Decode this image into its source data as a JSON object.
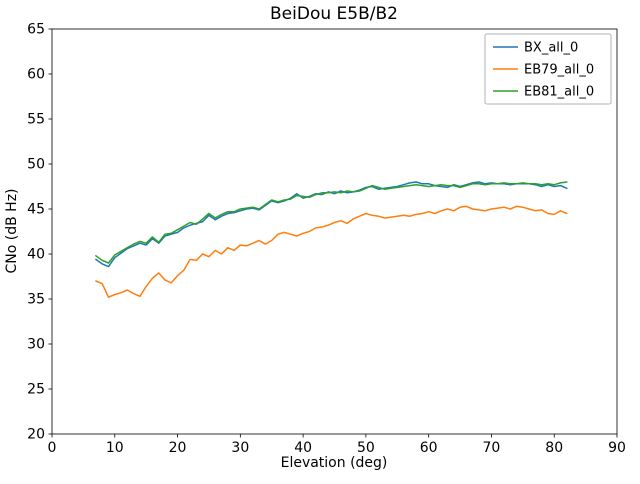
{
  "chart_data": {
    "type": "line",
    "title": "BeiDou E5B/B2",
    "xlabel": "Elevation (deg)",
    "ylabel": "CNo (dB Hz)",
    "xlim": [
      0,
      90
    ],
    "ylim": [
      20,
      65
    ],
    "xticks": [
      0,
      10,
      20,
      30,
      40,
      50,
      60,
      70,
      80,
      90
    ],
    "yticks": [
      20,
      25,
      30,
      35,
      40,
      45,
      50,
      55,
      60,
      65
    ],
    "grid": false,
    "legend_position": "upper right",
    "x": [
      7,
      8,
      9,
      10,
      11,
      12,
      13,
      14,
      15,
      16,
      17,
      18,
      19,
      20,
      21,
      22,
      23,
      24,
      25,
      26,
      27,
      28,
      29,
      30,
      31,
      32,
      33,
      34,
      35,
      36,
      37,
      38,
      39,
      40,
      41,
      42,
      43,
      44,
      45,
      46,
      47,
      48,
      49,
      50,
      51,
      52,
      53,
      54,
      55,
      56,
      57,
      58,
      59,
      60,
      61,
      62,
      63,
      64,
      65,
      66,
      67,
      68,
      69,
      70,
      71,
      72,
      73,
      74,
      75,
      76,
      77,
      78,
      79,
      80,
      81,
      82
    ],
    "series": [
      {
        "name": "BX_all_0",
        "color": "#1f77b4",
        "values": [
          39.4,
          38.9,
          38.6,
          39.6,
          40.1,
          40.6,
          40.9,
          41.2,
          41.0,
          41.7,
          41.2,
          42.0,
          42.2,
          42.4,
          42.9,
          43.2,
          43.4,
          43.6,
          44.3,
          43.8,
          44.2,
          44.5,
          44.6,
          44.8,
          45.0,
          45.1,
          44.9,
          45.4,
          45.9,
          45.7,
          45.9,
          46.2,
          46.7,
          46.2,
          46.4,
          46.7,
          46.6,
          46.9,
          46.7,
          47.0,
          46.8,
          46.9,
          47.1,
          47.4,
          47.5,
          47.2,
          47.3,
          47.4,
          47.5,
          47.7,
          47.9,
          48.0,
          47.8,
          47.8,
          47.6,
          47.5,
          47.4,
          47.7,
          47.5,
          47.7,
          47.9,
          48.0,
          47.8,
          47.9,
          47.8,
          47.8,
          47.7,
          47.8,
          47.8,
          47.8,
          47.7,
          47.5,
          47.7,
          47.5,
          47.6,
          47.3
        ]
      },
      {
        "name": "EB79_all_0",
        "color": "#ff7f0e",
        "values": [
          37.0,
          36.7,
          35.2,
          35.5,
          35.7,
          36.0,
          35.6,
          35.3,
          36.4,
          37.3,
          37.9,
          37.1,
          36.8,
          37.6,
          38.2,
          39.4,
          39.3,
          40.0,
          39.7,
          40.4,
          40.0,
          40.7,
          40.4,
          41.0,
          40.9,
          41.2,
          41.5,
          41.1,
          41.5,
          42.2,
          42.4,
          42.2,
          42.0,
          42.3,
          42.5,
          42.9,
          43.0,
          43.2,
          43.5,
          43.7,
          43.4,
          43.9,
          44.2,
          44.5,
          44.3,
          44.2,
          44.0,
          44.1,
          44.2,
          44.3,
          44.2,
          44.4,
          44.5,
          44.7,
          44.5,
          44.8,
          45.0,
          44.8,
          45.2,
          45.3,
          45.0,
          44.9,
          44.8,
          45.0,
          45.1,
          45.2,
          45.0,
          45.3,
          45.2,
          45.0,
          44.8,
          44.9,
          44.5,
          44.4,
          44.8,
          44.5
        ]
      },
      {
        "name": "EB81_all_0",
        "color": "#2ca02c",
        "values": [
          39.8,
          39.3,
          39.0,
          39.9,
          40.3,
          40.7,
          41.1,
          41.4,
          41.2,
          41.9,
          41.3,
          42.2,
          42.3,
          42.7,
          43.1,
          43.5,
          43.3,
          43.9,
          44.5,
          44.0,
          44.4,
          44.7,
          44.7,
          45.0,
          45.1,
          45.2,
          45.0,
          45.5,
          46.0,
          45.8,
          46.0,
          46.1,
          46.5,
          46.4,
          46.3,
          46.6,
          46.8,
          46.8,
          46.9,
          46.8,
          47.0,
          46.9,
          47.0,
          47.3,
          47.6,
          47.4,
          47.2,
          47.3,
          47.4,
          47.5,
          47.6,
          47.7,
          47.6,
          47.5,
          47.6,
          47.7,
          47.6,
          47.6,
          47.4,
          47.6,
          47.8,
          47.8,
          47.7,
          47.8,
          47.8,
          47.9,
          47.8,
          47.8,
          47.9,
          47.8,
          47.8,
          47.7,
          47.8,
          47.7,
          47.9,
          48.0
        ]
      }
    ]
  }
}
